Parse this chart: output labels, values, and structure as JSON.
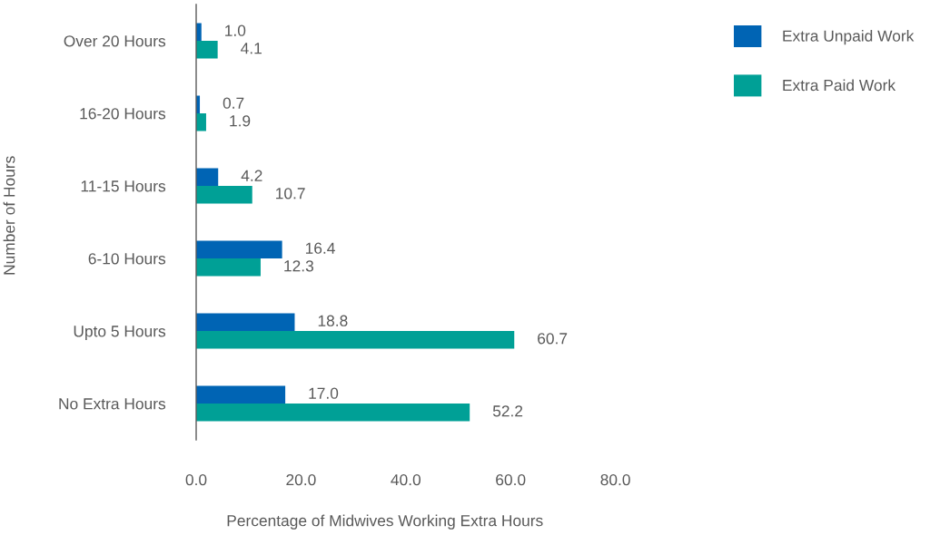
{
  "chart_data": {
    "type": "bar",
    "orientation": "horizontal",
    "xlabel": "Percentage of Midwives Working Extra Hours",
    "ylabel": "Number of Hours",
    "categories": [
      "Over 20 Hours",
      "16-20 Hours",
      "11-15 Hours",
      "6-10 Hours",
      "Upto 5 Hours",
      "No Extra Hours"
    ],
    "series": [
      {
        "name": "Extra Unpaid Work",
        "color": "#0064b4",
        "values": [
          1.0,
          0.7,
          4.2,
          16.4,
          18.8,
          17.0
        ],
        "value_labels": [
          "1.0",
          "0.7",
          "4.2",
          "16.4",
          "18.8",
          "17.0"
        ]
      },
      {
        "name": "Extra Paid Work",
        "color": "#00a096",
        "values": [
          4.1,
          1.9,
          10.7,
          12.3,
          60.7,
          52.2
        ],
        "value_labels": [
          "4.1",
          "1.9",
          "10.7",
          "12.3",
          "60.7",
          "52.2"
        ]
      }
    ],
    "xlim": [
      0,
      80
    ],
    "xticks": [
      {
        "value": 0,
        "label": "0.0"
      },
      {
        "value": 20,
        "label": "20.0"
      },
      {
        "value": 40,
        "label": "40.0"
      },
      {
        "value": 60,
        "label": "60.0"
      },
      {
        "value": 80,
        "label": "80.0"
      }
    ],
    "legend": "top right"
  }
}
